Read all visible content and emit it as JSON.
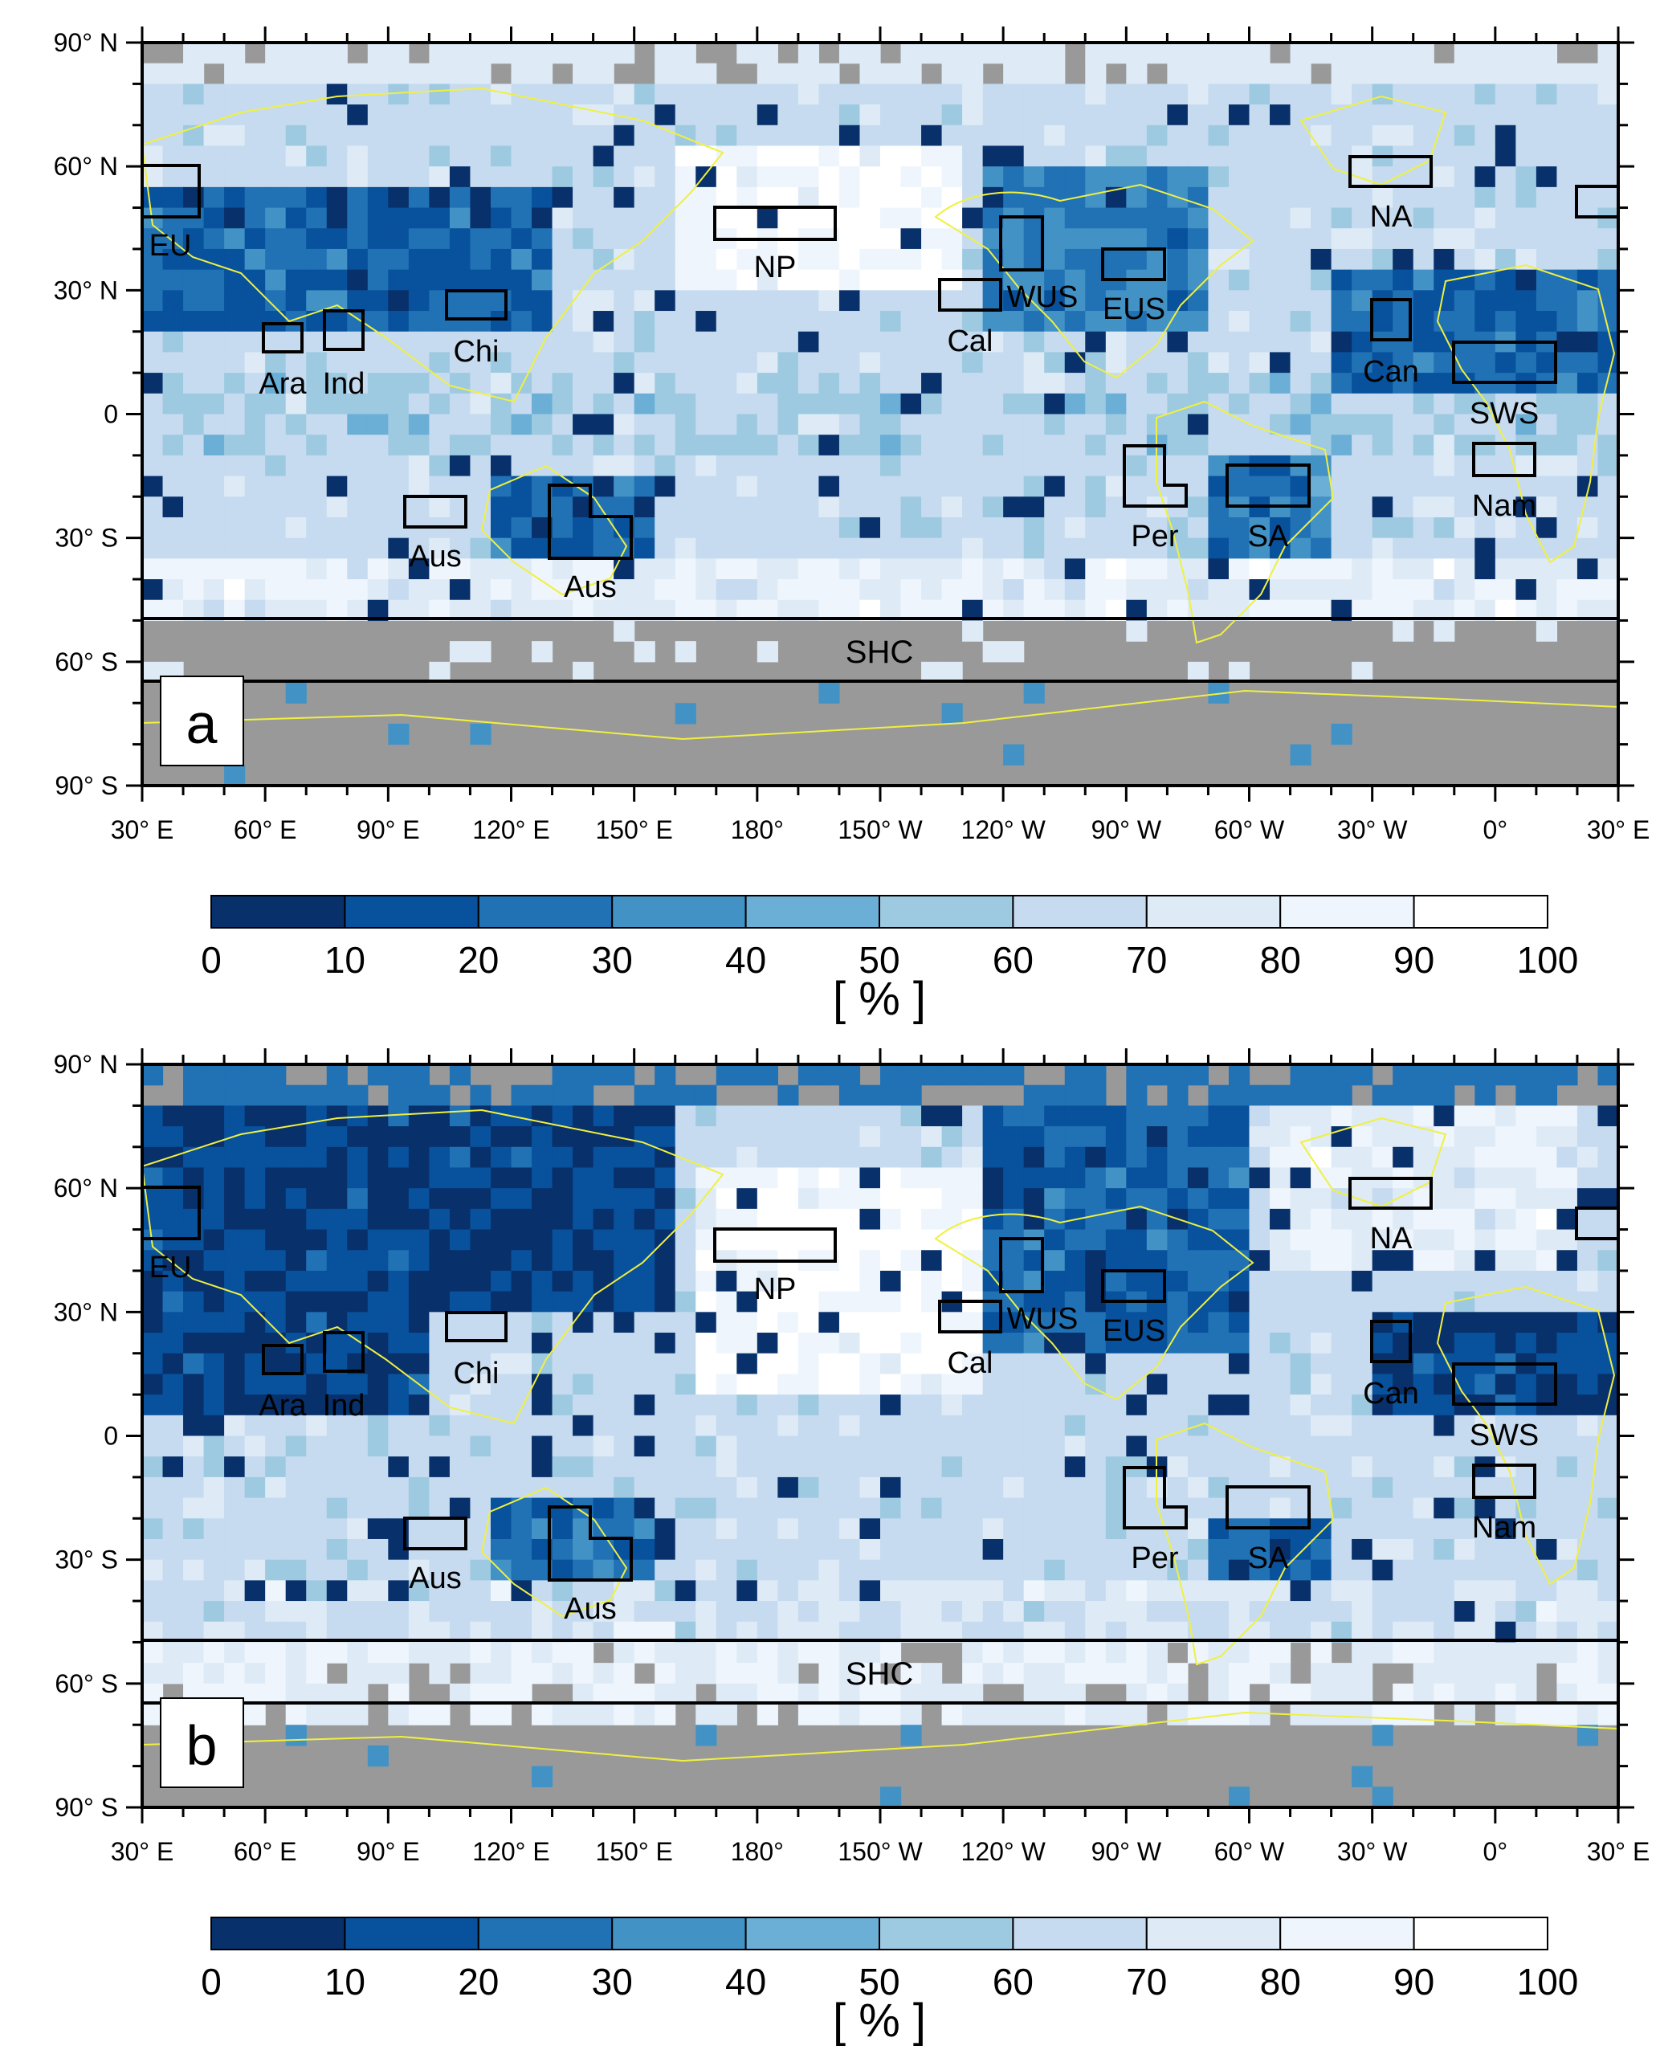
{
  "panels": [
    {
      "id": "a",
      "letter": "a",
      "top_band_label": "SHC",
      "lat_labels": [
        "90° N",
        "60° N",
        "30° N",
        "0",
        "30° S",
        "60° S",
        "90° S"
      ],
      "lon_labels": [
        "30° E",
        "60° E",
        "90° E",
        "120° E",
        "150° E",
        "180°",
        "150° W",
        "120° W",
        "90° W",
        "60° W",
        "30° W",
        "0°",
        "30° E"
      ],
      "region_labels": [
        "EU",
        "NP",
        "WUS",
        "EUS",
        "NA",
        "Ara",
        "Ind",
        "Chi",
        "Cal",
        "Can",
        "SWS",
        "Aus",
        "Aus",
        "Per",
        "SA",
        "Nam"
      ],
      "colorbar_ticks": [
        "0",
        "10",
        "20",
        "30",
        "40",
        "50",
        "60",
        "70",
        "80",
        "90",
        "100"
      ],
      "colorbar_unit": "[ % ]"
    },
    {
      "id": "b",
      "letter": "b",
      "top_band_label": "SHC",
      "lat_labels": [
        "90° N",
        "60° N",
        "30° N",
        "0",
        "30° S",
        "60° S",
        "90° S"
      ],
      "lon_labels": [
        "30° E",
        "60° E",
        "90° E",
        "120° E",
        "150° E",
        "180°",
        "150° W",
        "120° W",
        "90° W",
        "60° W",
        "30° W",
        "0°",
        "30° E"
      ],
      "region_labels": [
        "EU",
        "NP",
        "WUS",
        "EUS",
        "NA",
        "Ara",
        "Ind",
        "Chi",
        "Cal",
        "Can",
        "SWS",
        "Aus",
        "Aus",
        "Per",
        "SA",
        "Nam"
      ],
      "colorbar_ticks": [
        "0",
        "10",
        "20",
        "30",
        "40",
        "50",
        "60",
        "70",
        "80",
        "90",
        "100"
      ],
      "colorbar_unit": "[ % ]"
    }
  ],
  "colors": {
    "bins": [
      "#08306b",
      "#08519c",
      "#2171b5",
      "#4292c6",
      "#6baed6",
      "#9ecae1",
      "#c6dbef",
      "#deebf7",
      "#eef5fc",
      "#ffffff"
    ],
    "missing": "#999999",
    "coast": "#f0f040",
    "frame": "#000000"
  }
}
